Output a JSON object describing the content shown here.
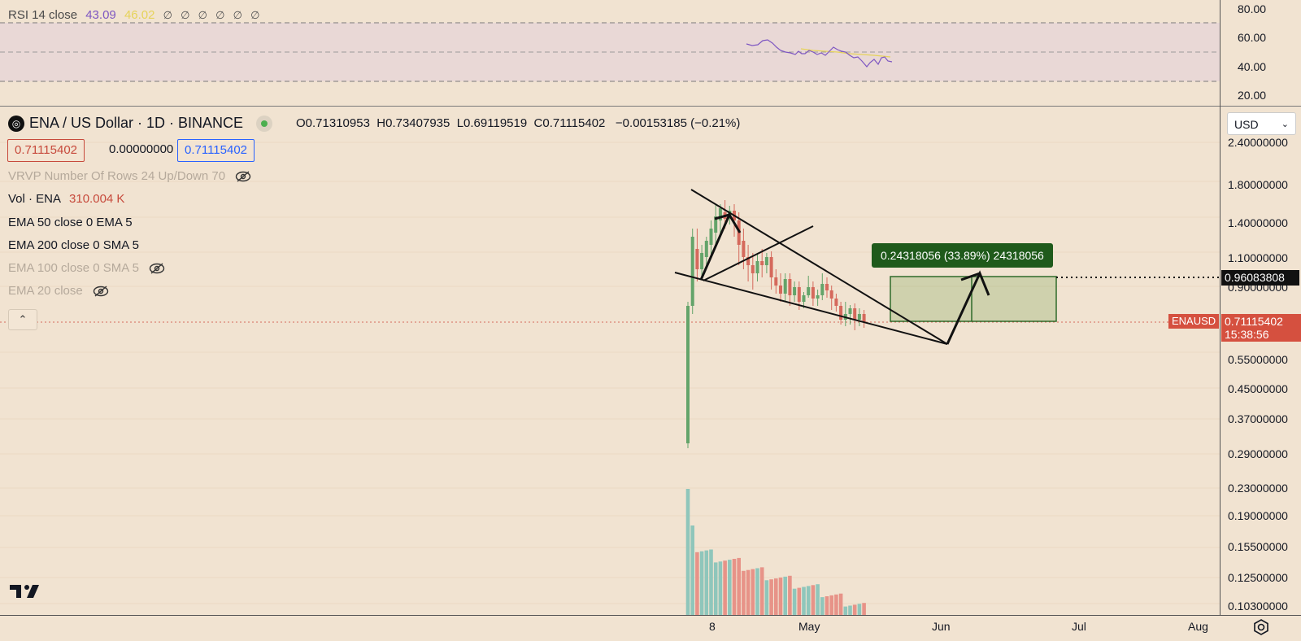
{
  "rsi": {
    "label": "RSI 14 close",
    "value": "43.09",
    "ma_value": "46.02",
    "nulls": [
      "∅",
      "∅",
      "∅",
      "∅",
      "∅",
      "∅"
    ],
    "scale": [
      "80.00",
      "60.00",
      "40.00",
      "20.00"
    ]
  },
  "symbol": {
    "logo_icon": "ena-logo-icon",
    "title": "ENA / US Dollar · 1D · BINANCE",
    "status_color": "#4caf50"
  },
  "ohlc": {
    "o_key": "O",
    "o": "0.71310953",
    "h_key": "H",
    "h": "0.73407935",
    "l_key": "L",
    "l": "0.69119519",
    "c_key": "C",
    "c": "0.71115402",
    "change": "−0.00153185 (−0.21%)"
  },
  "quote": {
    "bid": "0.71115402",
    "spread": "0.00000000",
    "ask": "0.71115402"
  },
  "indicators": [
    {
      "label": "VRVP Number Of Rows 24 Up/Down 70",
      "hidden": true
    },
    {
      "label": "Vol · ENA",
      "value": "310.004 K",
      "hidden": false
    },
    {
      "label": "EMA 50 close 0 EMA 5",
      "hidden": false
    },
    {
      "label": "EMA 200 close 0 SMA 5",
      "hidden": false
    },
    {
      "label": "EMA 100 close 0 SMA 5",
      "hidden": true
    },
    {
      "label": "EMA 20 close",
      "hidden": true
    }
  ],
  "collapse_glyph": "⌃",
  "currency": {
    "selected": "USD",
    "chevron": "⌄"
  },
  "price_scale": [
    "2.40000000",
    "1.80000000",
    "1.40000000",
    "1.10000000",
    "0.90000000",
    "0.55000000",
    "0.45000000",
    "0.37000000",
    "0.29000000",
    "0.23000000",
    "0.19000000",
    "0.15500000",
    "0.12500000",
    "0.10300000"
  ],
  "tags": {
    "target": "0.96083808",
    "symbol": "ENAUSD",
    "last": "0.71115402",
    "timer": "15:38:56"
  },
  "measure": {
    "label": "0.24318056 (33.89%) 24318056"
  },
  "time_axis": [
    "8",
    "May",
    "Jun",
    "Jul",
    "Aug"
  ],
  "colors": {
    "up": "#64a46a",
    "down": "#d5695c",
    "vol_up": "#8fc6bb",
    "vol_down": "#e79388",
    "rsi": "#7e57c2",
    "rsi_ma": "#e6d35a",
    "measure_fill": "#8fae6a"
  },
  "icons": {
    "tv_logo": "tradingview-logo-icon",
    "settings": "settings-icon",
    "eye_crossed": "eye-crossed-icon"
  }
}
